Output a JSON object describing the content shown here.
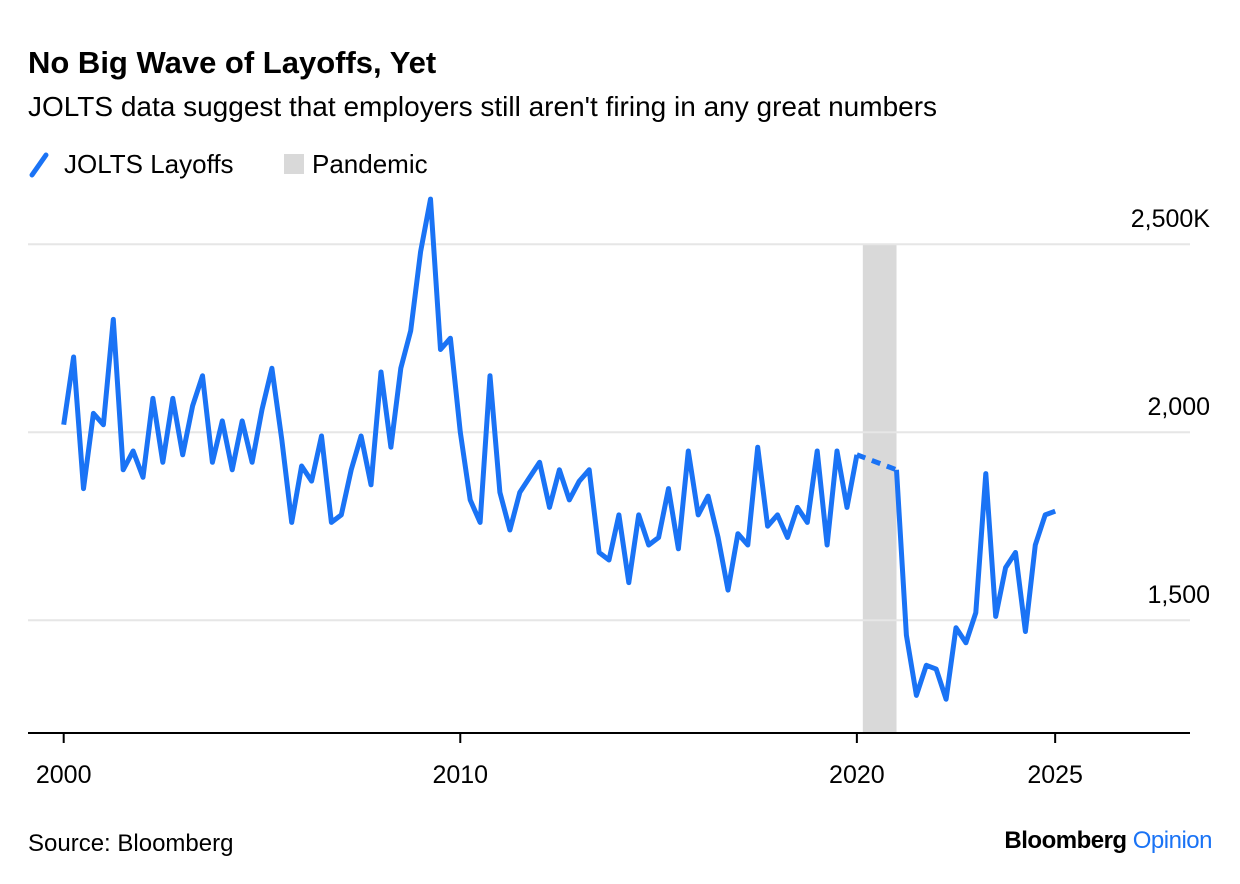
{
  "chart_data": {
    "type": "line",
    "title": "No Big Wave of Layoffs, Yet",
    "subtitle": "JOLTS data suggest that employers still aren't firing in any great numbers",
    "source": "Source: Bloomberg",
    "brand": [
      "Bloomberg",
      "Opinion"
    ],
    "x": [
      2000,
      2000.25,
      2000.5,
      2000.75,
      2001,
      2001.25,
      2001.5,
      2001.75,
      2002,
      2002.25,
      2002.5,
      2002.75,
      2003,
      2003.25,
      2003.5,
      2003.75,
      2004,
      2004.25,
      2004.5,
      2004.75,
      2005,
      2005.25,
      2005.5,
      2005.75,
      2006,
      2006.25,
      2006.5,
      2006.75,
      2007,
      2007.25,
      2007.5,
      2007.75,
      2008,
      2008.25,
      2008.5,
      2008.75,
      2009,
      2009.25,
      2009.5,
      2009.75,
      2010,
      2010.25,
      2010.5,
      2010.75,
      2011,
      2011.25,
      2011.5,
      2011.75,
      2012,
      2012.25,
      2012.5,
      2012.75,
      2013,
      2013.25,
      2013.5,
      2013.75,
      2014,
      2014.25,
      2014.5,
      2014.75,
      2015,
      2015.25,
      2015.5,
      2015.75,
      2016,
      2016.25,
      2016.5,
      2016.75,
      2017,
      2017.25,
      2017.5,
      2017.75,
      2018,
      2018.25,
      2018.5,
      2018.75,
      2019,
      2019.25,
      2019.5,
      2019.75,
      2020,
      2020.25,
      2020.5,
      2020.75,
      2021,
      2021.25,
      2021.5,
      2021.75,
      2022,
      2022.25,
      2022.5,
      2022.75,
      2023,
      2023.25,
      2023.5,
      2023.75,
      2024,
      2024.25,
      2024.5,
      2024.75,
      2025
    ],
    "series": [
      {
        "name": "JOLTS Layoffs",
        "color": "#1a73f5",
        "values": [
          2020,
          2200,
          1850,
          2050,
          2020,
          2300,
          1900,
          1950,
          1880,
          2090,
          1920,
          2090,
          1940,
          2070,
          2150,
          1920,
          2030,
          1900,
          2030,
          1920,
          2060,
          2170,
          1980,
          1760,
          1910,
          1870,
          1990,
          1760,
          1780,
          1900,
          1990,
          1860,
          2160,
          1960,
          2170,
          2270,
          2480,
          2620,
          2220,
          2250,
          2000,
          1820,
          1760,
          2150,
          1840,
          1740,
          1840,
          1880,
          1920,
          1800,
          1900,
          1820,
          1870,
          1900,
          1680,
          1660,
          1780,
          1600,
          1780,
          1700,
          1720,
          1850,
          1690,
          1950,
          1780,
          1830,
          1720,
          1580,
          1730,
          1700,
          1960,
          1750,
          1780,
          1720,
          1800,
          1760,
          1950,
          1700,
          1950,
          1800,
          1940,
          null,
          null,
          null,
          1900,
          1460,
          1300,
          1380,
          1370,
          1290,
          1480,
          1440,
          1520,
          1890,
          1510,
          1640,
          1680,
          1470,
          1700,
          1780,
          1790
        ]
      }
    ],
    "shading": [
      {
        "name": "Pandemic",
        "color": "#d9d9d9",
        "start": 2020.15,
        "end": 2021.0
      }
    ],
    "xlim": [
      1999.1,
      2028.4
    ],
    "xticks": [
      2000,
      2010,
      2020,
      2025
    ],
    "ylim": [
      1200,
      2700
    ],
    "yticks": [
      {
        "value": 1500,
        "label": "1,500"
      },
      {
        "value": 2000,
        "label": "2,000"
      },
      {
        "value": 2500,
        "label": "2,500K"
      }
    ],
    "grid": true
  }
}
